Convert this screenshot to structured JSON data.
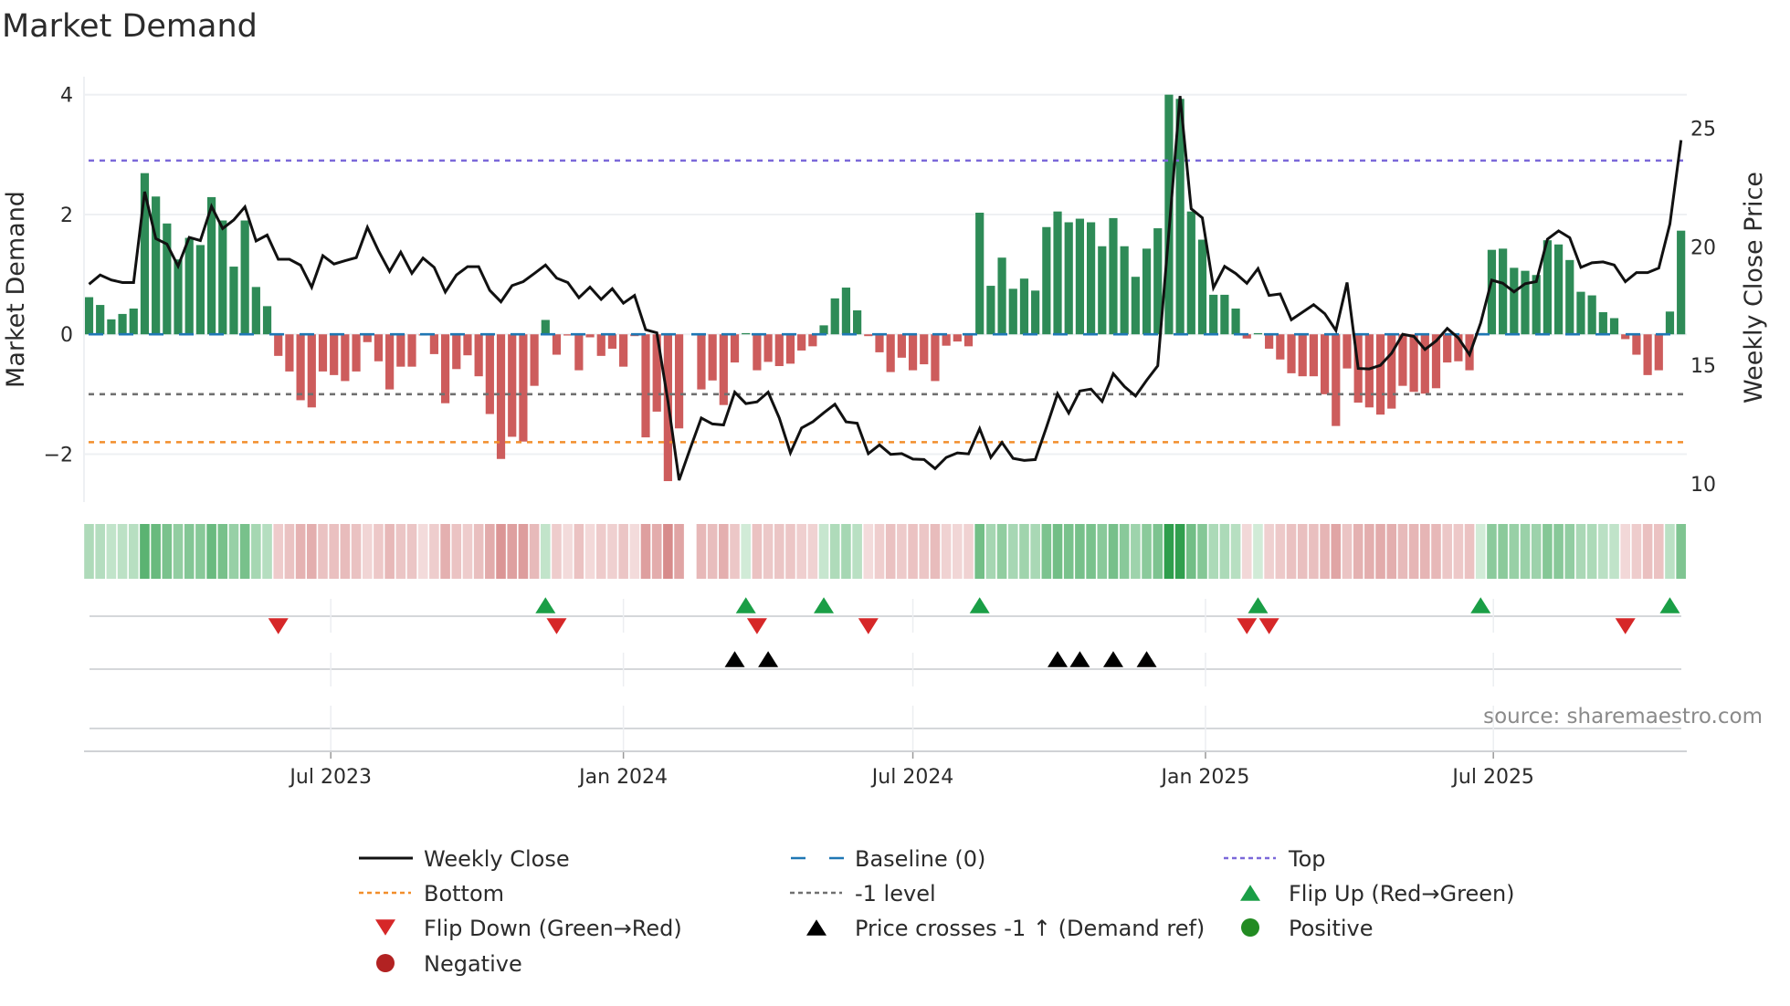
{
  "chart_data": {
    "type": "bar+line",
    "title": "Market Demand",
    "ylabel": "Market Demand",
    "y2label": "Weekly Close Price",
    "ylim": [
      -2.8,
      4.3
    ],
    "y2lim": [
      9.36,
      27.3
    ],
    "x_start": "2023-01-30",
    "x_step_days": 7,
    "yticks": [
      {
        "value": 4,
        "label": "4"
      },
      {
        "value": 2,
        "label": "2"
      },
      {
        "value": 0,
        "label": "0"
      },
      {
        "value": -2,
        "label": "−2"
      }
    ],
    "y2ticks": [
      {
        "value": 10,
        "label": "10"
      },
      {
        "value": 15,
        "label": "15"
      },
      {
        "value": 20,
        "label": "20"
      },
      {
        "value": 25,
        "label": "25"
      }
    ],
    "xticks": [
      {
        "date": "2023-07-01",
        "label": "Jul 2023"
      },
      {
        "date": "2024-01-01",
        "label": "Jan 2024"
      },
      {
        "date": "2024-07-01",
        "label": "Jul 2024"
      },
      {
        "date": "2025-01-01",
        "label": "Jan 2025"
      },
      {
        "date": "2025-07-01",
        "label": "Jul 2025"
      }
    ],
    "reference_lines": [
      {
        "name": "Top",
        "value": 2.9,
        "color": "#7b68d9"
      },
      {
        "name": "Bottom",
        "value": -1.8,
        "color": "#f28e2b"
      },
      {
        "name": "-1 level",
        "value": -1,
        "color": "#707070"
      },
      {
        "name": "Baseline (0)",
        "value": 0,
        "color": "#1f77b4"
      }
    ],
    "demand": [
      0.62,
      0.49,
      0.25,
      0.34,
      0.43,
      2.69,
      2.3,
      1.85,
      1.25,
      1.61,
      1.49,
      2.29,
      1.9,
      1.13,
      1.9,
      0.79,
      0.47,
      -0.36,
      -0.62,
      -1.1,
      -1.22,
      -0.62,
      -0.68,
      -0.78,
      -0.62,
      -0.13,
      -0.45,
      -0.92,
      -0.54,
      -0.54,
      -0.02,
      -0.33,
      -1.15,
      -0.58,
      -0.35,
      -0.7,
      -1.33,
      -2.08,
      -1.71,
      -1.79,
      -0.86,
      0.24,
      -0.34,
      -0.02,
      -0.6,
      -0.05,
      -0.36,
      -0.24,
      -0.54,
      -0.03,
      -1.72,
      -1.29,
      -2.45,
      -1.57,
      0,
      -0.92,
      -0.77,
      -1.18,
      -0.47,
      0.02,
      -0.6,
      -0.46,
      -0.53,
      -0.49,
      -0.27,
      -0.2,
      0.15,
      0.6,
      0.78,
      0.4,
      -0.03,
      -0.3,
      -0.63,
      -0.39,
      -0.6,
      -0.5,
      -0.78,
      -0.19,
      -0.12,
      -0.2,
      2.03,
      0.81,
      1.28,
      0.76,
      0.93,
      0.73,
      1.79,
      2.05,
      1.87,
      1.93,
      1.87,
      1.47,
      1.94,
      1.47,
      0.96,
      1.43,
      1.77,
      4.0,
      3.93,
      2.05,
      1.58,
      0.66,
      0.66,
      0.43,
      -0.07,
      0.02,
      -0.24,
      -0.42,
      -0.65,
      -0.7,
      -0.7,
      -1.0,
      -1.53,
      -0.57,
      -1.14,
      -1.22,
      -1.34,
      -1.24,
      -0.86,
      -0.96,
      -0.99,
      -0.9,
      -0.47,
      -0.45,
      -0.6,
      0.02,
      1.41,
      1.43,
      1.11,
      1.06,
      0.99,
      1.57,
      1.5,
      1.24,
      0.71,
      0.65,
      0.37,
      0.27,
      -0.08,
      -0.34,
      -0.68,
      -0.6,
      0.38,
      1.73
    ],
    "weekly_close": [
      18.42,
      18.81,
      18.6,
      18.49,
      18.49,
      22.32,
      20.34,
      20.11,
      19.18,
      20.39,
      20.26,
      21.7,
      20.77,
      21.13,
      21.68,
      20.24,
      20.49,
      19.47,
      19.47,
      19.22,
      18.29,
      19.62,
      19.27,
      19.41,
      19.54,
      20.82,
      19.83,
      18.96,
      19.77,
      18.88,
      19.52,
      19.13,
      18.09,
      18.81,
      19.16,
      19.16,
      18.16,
      17.68,
      18.36,
      18.53,
      18.87,
      19.23,
      18.68,
      18.49,
      17.85,
      18.3,
      17.78,
      18.23,
      17.62,
      17.95,
      16.5,
      16.37,
      13.49,
      10.16,
      11.5,
      12.78,
      12.53,
      12.49,
      13.87,
      13.39,
      13.46,
      13.87,
      12.78,
      11.31,
      12.36,
      12.62,
      13.0,
      13.36,
      12.62,
      12.56,
      11.28,
      11.65,
      11.25,
      11.28,
      11.05,
      11.03,
      10.65,
      11.12,
      11.31,
      11.27,
      12.33,
      11.12,
      11.75,
      11.08,
      10.99,
      11.03,
      12.39,
      13.8,
      12.99,
      13.92,
      14.0,
      13.48,
      14.65,
      14.11,
      13.71,
      14.37,
      14.98,
      20.62,
      26.35,
      21.6,
      21.22,
      18.27,
      19.17,
      18.87,
      18.46,
      19.08,
      17.95,
      18.01,
      16.92,
      17.24,
      17.56,
      17.18,
      16.47,
      18.49,
      14.87,
      14.85,
      15.0,
      15.51,
      16.31,
      16.22,
      15.67,
      16.03,
      16.56,
      16.15,
      15.45,
      16.79,
      18.59,
      18.46,
      18.1,
      18.44,
      18.53,
      20.32,
      20.67,
      20.38,
      19.13,
      19.32,
      19.36,
      19.23,
      18.53,
      18.91,
      18.91,
      19.1,
      20.96,
      24.49
    ],
    "flip_up_weeks": [
      41,
      59,
      66,
      80,
      105,
      125,
      142
    ],
    "flip_down_weeks": [
      17,
      42,
      60,
      70,
      104,
      106,
      138
    ],
    "price_cross_weeks": [
      58,
      61,
      87,
      89,
      92,
      95
    ],
    "colors": {
      "positive_bar": "#2e8b57",
      "negative_bar": "#cd5c5c",
      "price": "#111111",
      "flip_up": "#1a9e46",
      "flip_down": "#d62728",
      "cross": "#000000",
      "positive": "#228b22",
      "negative": "#b22222"
    },
    "legend": [
      {
        "label": "Weekly Close",
        "symbol": "line"
      },
      {
        "label": "Baseline (0)",
        "symbol": "dash"
      },
      {
        "label": "Top",
        "symbol": "dot-top"
      },
      {
        "label": "Bottom",
        "symbol": "dot-bottom"
      },
      {
        "label": "-1 level",
        "symbol": "dot-level"
      },
      {
        "label": "Flip Up (Red→Green)",
        "symbol": "tri-up-green"
      },
      {
        "label": "Flip Down (Green→Red)",
        "symbol": "tri-down-red"
      },
      {
        "label": "Price crosses -1 ↑ (Demand ref)",
        "symbol": "tri-up-black"
      },
      {
        "label": "Positive",
        "symbol": "circle-green"
      },
      {
        "label": "Negative",
        "symbol": "circle-red"
      }
    ],
    "legend_placement": "bottom",
    "source": "source: sharemaestro.com"
  }
}
